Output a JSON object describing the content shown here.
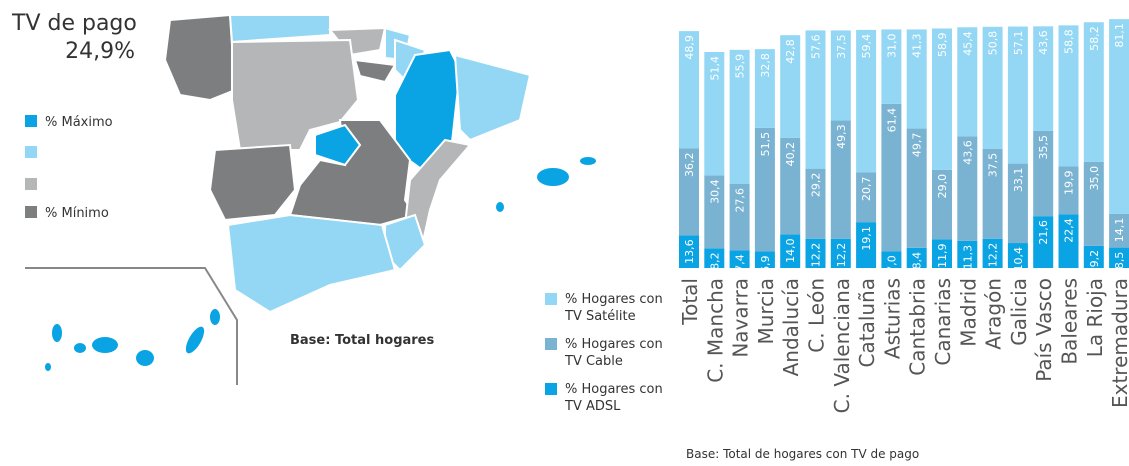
{
  "map": {
    "title": "TV de pago",
    "value": "24,9%",
    "legend": [
      {
        "label": "% Máximo",
        "color": "#0aa4e4"
      },
      {
        "color": "#93d7f4"
      },
      {
        "color": "#b5b6b8"
      },
      {
        "label": "% Mínimo",
        "color": "#7d7e80"
      }
    ],
    "note": "Base: Total hogares"
  },
  "chart_data": {
    "type": "bar",
    "stacked": true,
    "categories": [
      "Total",
      "C. Mancha",
      "Navarra",
      "Murcia",
      "Andalucía",
      "C. León",
      "C. Valenciana",
      "Cataluña",
      "Asturias",
      "Cantabria",
      "Canarias",
      "Madrid",
      "Aragón",
      "Galicia",
      "País Vasco",
      "Baleares",
      "La Rioja",
      "Extremadura"
    ],
    "series": [
      {
        "name": "% Hogares con TV ADSL",
        "color": "#0aa4e4",
        "values": [
          13.6,
          8.2,
          7.4,
          6.9,
          14.0,
          12.2,
          12.2,
          19.1,
          7.0,
          8.4,
          11.9,
          11.3,
          12.2,
          10.4,
          21.6,
          22.4,
          9.2,
          8.5
        ],
        "value_labels": [
          "13,6",
          "8,2",
          "7,4",
          "6,9",
          "14,0",
          "12,2",
          "12,2",
          "19,1",
          "7,0",
          "8,4",
          "11,9",
          "11,3",
          "12,2",
          "10,4",
          "21,6",
          "22,4",
          "9,2",
          "8,5"
        ]
      },
      {
        "name": "% Hogares con TV Cable",
        "color": "#7ab3d2",
        "values": [
          36.2,
          30.4,
          27.6,
          51.5,
          40.2,
          29.2,
          49.3,
          20.7,
          61.4,
          49.7,
          29.0,
          43.6,
          37.5,
          33.1,
          35.5,
          19.9,
          35.0,
          14.1
        ],
        "value_labels": [
          "36,2",
          "30,4",
          "27,6",
          "51,5",
          "40,2",
          "29,2",
          "49,3",
          "20,7",
          "61,4",
          "49,7",
          "29,0",
          "43,6",
          "37,5",
          "33,1",
          "35,5",
          "19,9",
          "35,0",
          "14,1"
        ]
      },
      {
        "name": "% Hogares con TV Satélite",
        "color": "#93d7f4",
        "values": [
          48.9,
          51.4,
          55.9,
          32.8,
          42.8,
          57.6,
          37.5,
          59.4,
          31.0,
          41.3,
          58.9,
          45.4,
          50.8,
          57.1,
          43.6,
          58.8,
          58.2,
          81.1
        ],
        "value_labels": [
          "48,9",
          "51,4",
          "55,9",
          "32,8",
          "42,8",
          "57,6",
          "37,5",
          "59,4",
          "31,0",
          "41,3",
          "58,9",
          "45,4",
          "50,8",
          "57,1",
          "43,6",
          "58,8",
          "58,2",
          "81,1"
        ]
      }
    ],
    "note": "Base: Total de hogares con TV de pago"
  }
}
